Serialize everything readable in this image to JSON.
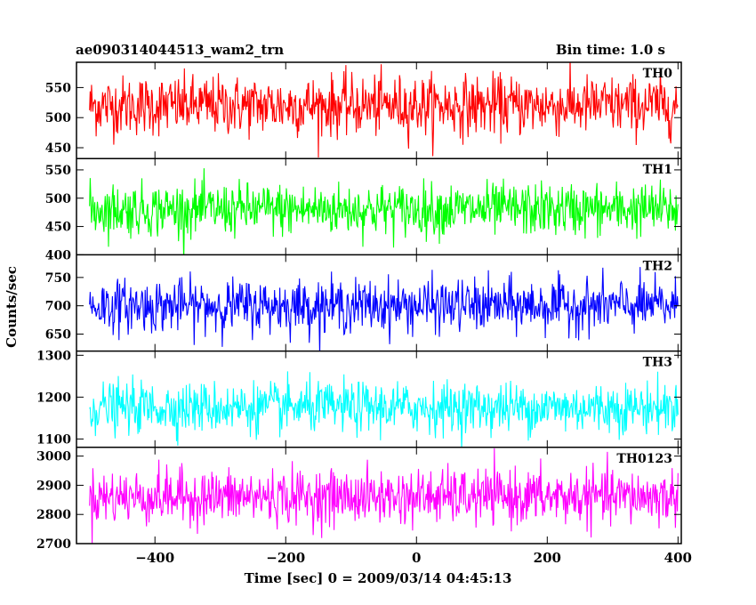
{
  "chart_data": {
    "type": "line",
    "title": "ae090314044513_wam2_trn",
    "bin_label": "Bin time: 1.0 s",
    "xlabel": "Time [sec] 0 = 2009/03/14 04:45:13",
    "ylabel": "Counts/sec",
    "xlim": [
      -520,
      405
    ],
    "x_ticks": [
      -400,
      -200,
      0,
      200,
      400
    ],
    "x_tick_labels": [
      "−400",
      "−200",
      "0",
      "200",
      "400"
    ],
    "x_range_data": [
      -500,
      400
    ],
    "grid": false,
    "panels": [
      {
        "name": "TH0",
        "color": "#ff0000",
        "ylim": [
          432,
          592
        ],
        "y_ticks": [
          450,
          500,
          550
        ],
        "y_tick_labels": [
          "450",
          "500",
          "550"
        ],
        "mean": 520,
        "amplitude": 45
      },
      {
        "name": "TH1",
        "color": "#00ff00",
        "ylim": [
          400,
          570
        ],
        "y_ticks": [
          400,
          450,
          500,
          550
        ],
        "y_tick_labels": [
          "400",
          "450",
          "500",
          "550"
        ],
        "mean": 480,
        "amplitude": 42
      },
      {
        "name": "TH2",
        "color": "#0000ff",
        "ylim": [
          620,
          790
        ],
        "y_ticks": [
          650,
          700,
          750
        ],
        "y_tick_labels": [
          "650",
          "700",
          "750"
        ],
        "mean": 700,
        "amplitude": 42
      },
      {
        "name": "TH3",
        "color": "#00ffff",
        "ylim": [
          1080,
          1310
        ],
        "y_ticks": [
          1100,
          1200,
          1300
        ],
        "y_tick_labels": [
          "1100",
          "1200",
          "1300"
        ],
        "mean": 1175,
        "amplitude": 55
      },
      {
        "name": "TH0123",
        "color": "#ff00ff",
        "ylim": [
          2700,
          3030
        ],
        "y_ticks": [
          2700,
          2800,
          2900,
          3000
        ],
        "y_tick_labels": [
          "2700",
          "2800",
          "2900",
          "3000"
        ],
        "mean": 2860,
        "amplitude": 85
      }
    ]
  }
}
